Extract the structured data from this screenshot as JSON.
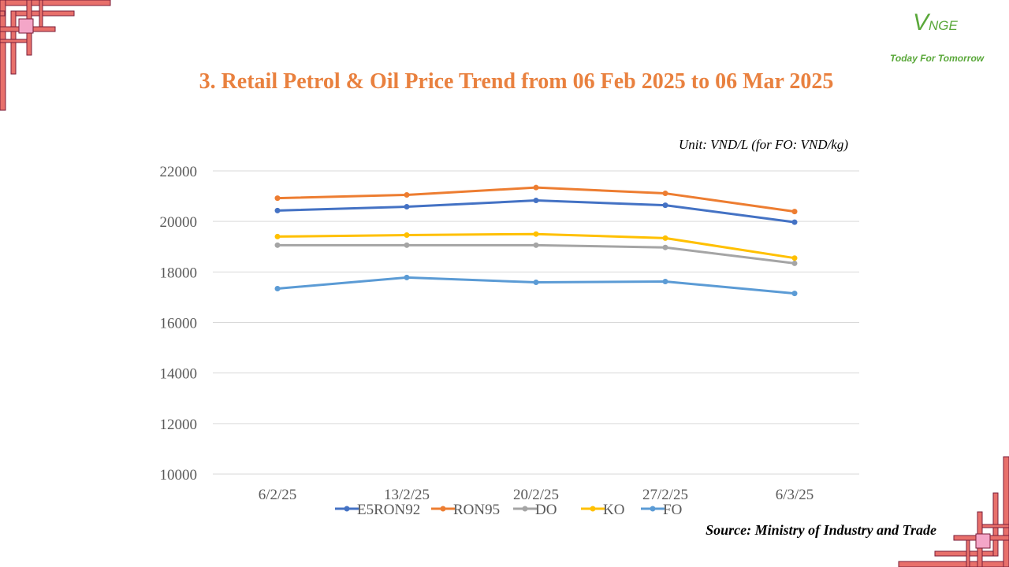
{
  "title": "3. Retail Petrol & Oil Price Trend from 06 Feb 2025 to 06 Mar 2025",
  "unit": "Unit: VND/L (for FO: VND/kg)",
  "source": "Source: Ministry of Industry and Trade",
  "logo": {
    "mark_v": "V",
    "mark_rest": "NGE",
    "tagline": "Today For Tomorrow",
    "color": "#5aa83a"
  },
  "decor_color": "#e8706b",
  "chart_data": {
    "type": "line",
    "title": "3. Retail Petrol & Oil Price Trend from 06 Feb 2025 to 06 Mar 2025",
    "categories": [
      "6/2/25",
      "13/2/25",
      "20/2/25",
      "27/2/25",
      "6/3/25"
    ],
    "ylim": [
      10000,
      22000
    ],
    "yticks": [
      "10000",
      "12000",
      "14000",
      "16000",
      "18000",
      "20000",
      "22000"
    ],
    "grid": true,
    "legend_position": "bottom",
    "series": [
      {
        "name": "E5RON92",
        "color": "#4472c4",
        "values": [
          20430,
          20580,
          20830,
          20640,
          19970
        ]
      },
      {
        "name": "RON95",
        "color": "#ed7d31",
        "values": [
          20920,
          21050,
          21340,
          21110,
          20390
        ]
      },
      {
        "name": "DO",
        "color": "#a5a5a5",
        "values": [
          19060,
          19060,
          19060,
          18970,
          18340
        ]
      },
      {
        "name": "KO",
        "color": "#ffc000",
        "values": [
          19400,
          19460,
          19500,
          19340,
          18550
        ]
      },
      {
        "name": "FO",
        "color": "#5b9bd5",
        "values": [
          17340,
          17780,
          17590,
          17620,
          17150
        ]
      }
    ]
  }
}
